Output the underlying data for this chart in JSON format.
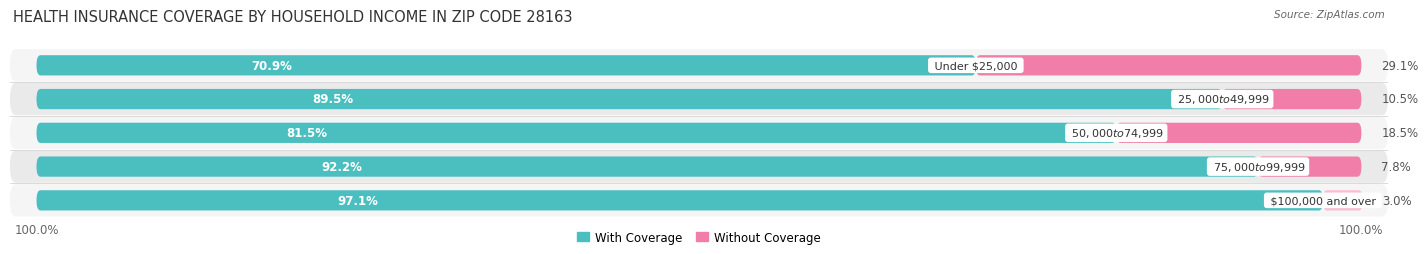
{
  "title": "HEALTH INSURANCE COVERAGE BY HOUSEHOLD INCOME IN ZIP CODE 28163",
  "source": "Source: ZipAtlas.com",
  "categories": [
    "Under $25,000",
    "$25,000 to $49,999",
    "$50,000 to $74,999",
    "$75,000 to $99,999",
    "$100,000 and over"
  ],
  "with_coverage": [
    70.9,
    89.5,
    81.5,
    92.2,
    97.1
  ],
  "without_coverage": [
    29.1,
    10.5,
    18.5,
    7.8,
    3.0
  ],
  "color_with": "#4BBFBF",
  "color_without": "#F07EA8",
  "color_without_light": "#F9BDD3",
  "row_colors": [
    "#f5f5f5",
    "#eaeaea",
    "#f5f5f5",
    "#eaeaea",
    "#f5f5f5"
  ],
  "bar_height": 0.6,
  "legend_labels": [
    "With Coverage",
    "Without Coverage"
  ],
  "title_fontsize": 10.5,
  "label_fontsize": 8.5,
  "tick_fontsize": 8.5,
  "cat_fontsize": 8.0,
  "source_fontsize": 7.5
}
